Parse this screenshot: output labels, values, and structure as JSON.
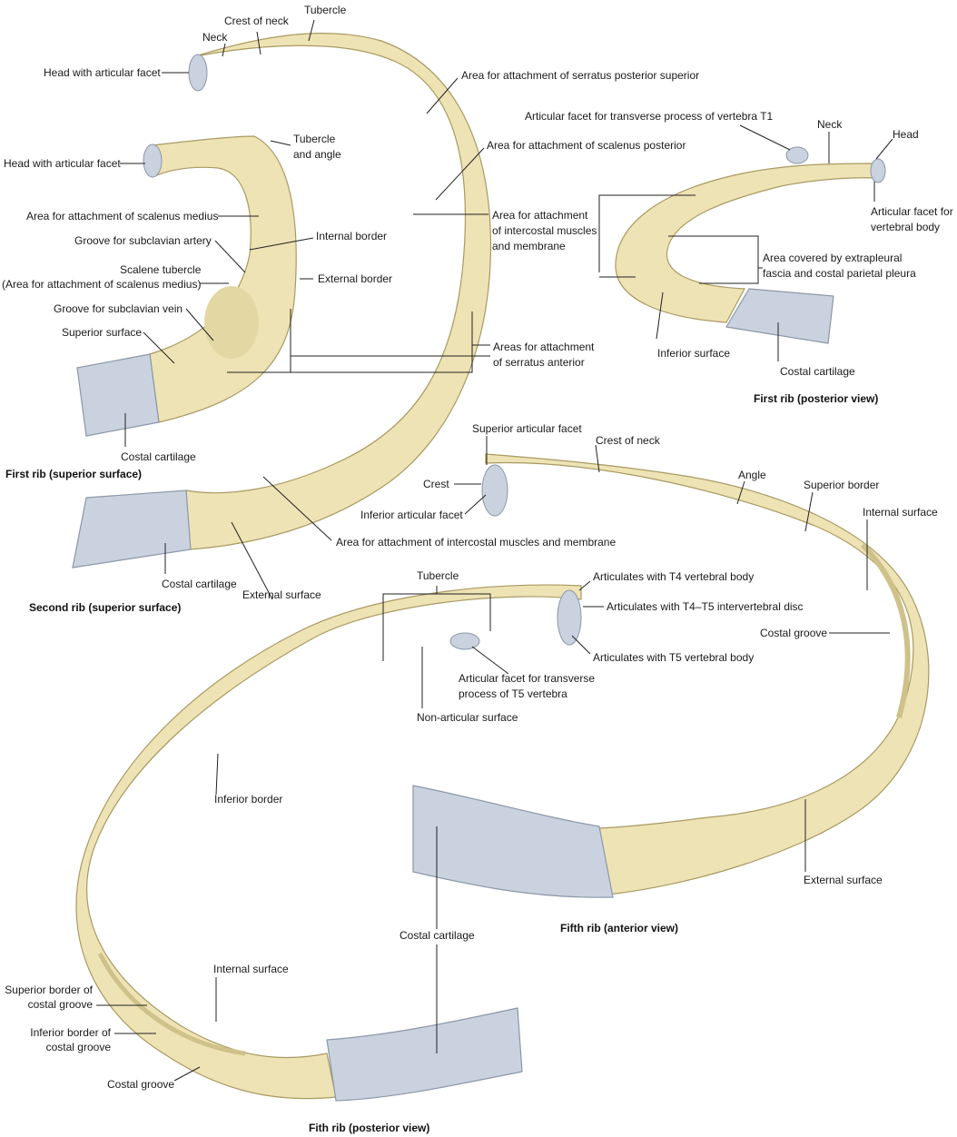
{
  "colors": {
    "bone": "#eee3b4",
    "bone_shadow": "#cfc18a",
    "bone_edge": "#a89a62",
    "cartilage": "#c9d2de",
    "cartilage_edge": "#8c97a8",
    "leader": "#222222"
  },
  "first_rib_superior": {
    "caption": "First rib (superior surface)",
    "labels": {
      "head": "Head with articular facet",
      "tubercle_angle_1": "Tubercle",
      "tubercle_angle_2": "and angle",
      "scalenus_medius": "Area for attachment of scalenus medius",
      "subclavian_artery": "Groove for subclavian artery",
      "internal_border": "Internal border",
      "scalene_tubercle_1": "Scalene tubercle",
      "scalene_tubercle_2": "(Area for attachment of scalenus medius)",
      "external_border": "External border",
      "subclavian_vein": "Groove for subclavian vein",
      "superior_surface": "Superior surface",
      "costal_cartilage": "Costal cartilage"
    }
  },
  "second_rib_superior": {
    "caption": "Second rib (superior surface)",
    "labels": {
      "crest_of_neck": "Crest of neck",
      "tubercle": "Tubercle",
      "neck": "Neck",
      "head": "Head with articular facet",
      "serratus_post_sup": "Area for attachment of serratus posterior superior",
      "scalenus_posterior": "Area for attachment of scalenus posterior",
      "intercostal_1": "Area for attachment",
      "intercostal_2": "of intercostal muscles",
      "intercostal_3": "and membrane",
      "serratus_anterior_1": "Areas for attachment",
      "serratus_anterior_2": "of serratus anterior",
      "intercostal_lower": "Area for attachment of intercostal muscles and membrane",
      "costal_cartilage": "Costal cartilage",
      "external_surface": "External surface"
    }
  },
  "first_rib_posterior": {
    "caption": "First rib (posterior view)",
    "labels": {
      "facet_t1": "Articular facet for transverse process of vertebra T1",
      "neck": "Neck",
      "head": "Head",
      "facet_vb_1": "Articular facet for",
      "facet_vb_2": "vertebral body",
      "pleura_1": "Area covered by extrapleural",
      "pleura_2": "fascia and costal parietal pleura",
      "inferior_surface": "Inferior surface",
      "costal_cartilage": "Costal cartilage"
    }
  },
  "fifth_rib_anterior": {
    "caption": "Fifth rib (anterior view)",
    "labels": {
      "sup_facet": "Superior articular facet",
      "crest_of_neck": "Crest of neck",
      "crest": "Crest",
      "angle": "Angle",
      "superior_border": "Superior border",
      "inf_facet": "Inferior articular facet",
      "internal_surface": "Internal surface",
      "costal_groove": "Costal groove",
      "external_surface": "External surface"
    }
  },
  "fifth_rib_posterior": {
    "caption": "Fith rib (posterior view)",
    "labels": {
      "tubercle": "Tubercle",
      "t4_body": "Articulates with T4 vertebral body",
      "t4t5_disc": "Articulates with T4–T5 intervertebral disc",
      "t5_body": "Articulates with T5 vertebral body",
      "facet_t5_1": "Articular facet for transverse",
      "facet_t5_2": "process of T5 vertebra",
      "non_articular": "Non-articular surface",
      "inferior_border": "Inferior border",
      "costal_cartilage": "Costal cartilage",
      "internal_surface": "Internal surface",
      "sup_border_groove_1": "Superior border of",
      "sup_border_groove_2": "costal groove",
      "inf_border_groove_1": "Inferior border of",
      "inf_border_groove_2": "costal groove",
      "costal_groove": "Costal groove"
    }
  }
}
